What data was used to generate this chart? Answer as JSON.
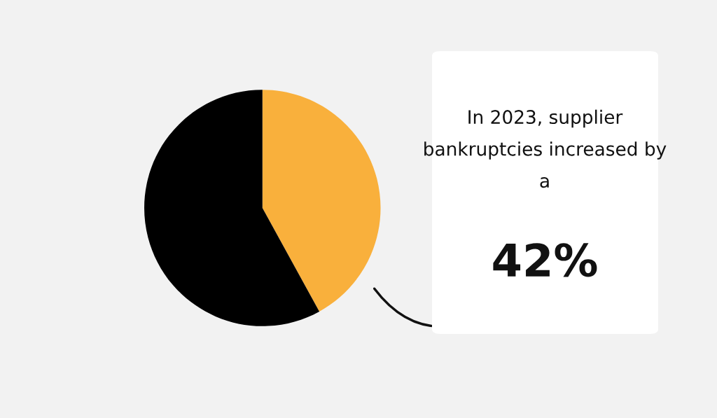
{
  "chart_data": {
    "type": "pie",
    "categories": [
      null,
      null
    ],
    "values": [
      42,
      58
    ],
    "colors": [
      "#f9b03c",
      "#000000"
    ],
    "value_labels": [
      "42%",
      null
    ],
    "annotations": [
      "In 2023, supplier bankruptcies increased by a"
    ]
  }
}
